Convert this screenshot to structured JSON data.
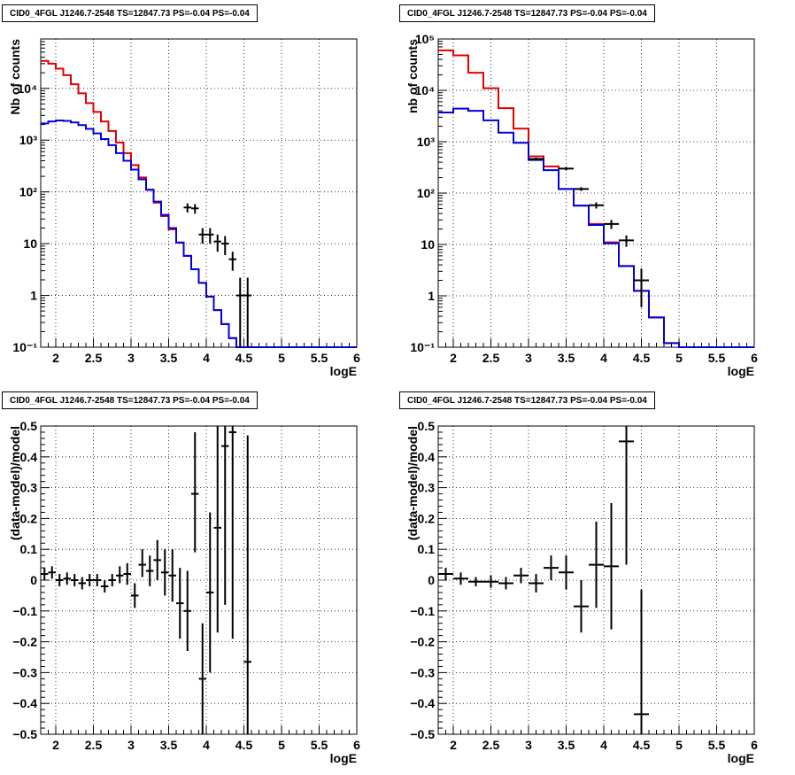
{
  "colors": {
    "data": "#000000",
    "model_red": "#e00000",
    "model_blue": "#0000dd",
    "grid": "#000000"
  },
  "chart_data": [
    {
      "type": "line",
      "title": "CID0_4FGL J1246.7-2548 TS=12847.73 PS=-0.04 PS=-0.04",
      "xlabel": "logE",
      "ylabel": "Nb of counts",
      "xlim": [
        1.8,
        6.0
      ],
      "ylim": [
        0.1,
        90000
      ],
      "ylog": true,
      "xticks": [
        "2",
        "2.5",
        "3",
        "3.5",
        "4",
        "4.5",
        "5",
        "5.5",
        "6"
      ],
      "yticks": [
        "10⁻¹",
        "1",
        "10",
        "10²",
        "10³",
        "10⁴"
      ],
      "grid": true,
      "series": [
        {
          "name": "",
          "style": "step-red",
          "edges": [
            1.8,
            1.9,
            2.0,
            2.1,
            2.2,
            2.3,
            2.4,
            2.5,
            2.6,
            2.7,
            2.8,
            2.9,
            3.0,
            3.1,
            3.2,
            3.3,
            3.4,
            3.5,
            3.6,
            3.7,
            3.8,
            3.9,
            4.0,
            4.1,
            4.2,
            4.3,
            4.4,
            4.5,
            4.6,
            4.7,
            4.8,
            4.9,
            5.0,
            6.0
          ],
          "values": [
            34000,
            30000,
            24000,
            18000,
            12000,
            8000,
            5200,
            3500,
            2300,
            1500,
            900,
            560,
            330,
            190,
            110,
            62,
            34,
            19,
            10.5,
            5.8,
            3.2,
            1.75,
            0.95,
            0.52,
            0.28,
            0.15,
            0.1,
            0.1,
            0.1,
            0.1,
            0.1,
            0.1,
            0.1
          ]
        },
        {
          "name": "",
          "style": "step-blue",
          "edges": [
            1.8,
            1.9,
            2.0,
            2.1,
            2.2,
            2.3,
            2.4,
            2.5,
            2.6,
            2.7,
            2.8,
            2.9,
            3.0,
            3.1,
            3.2,
            3.3,
            3.4,
            3.5,
            3.6,
            3.7,
            3.8,
            3.9,
            4.0,
            4.1,
            4.2,
            4.3,
            4.4,
            4.5,
            4.6,
            4.7,
            4.8,
            4.9,
            5.0,
            6.0
          ],
          "values": [
            2100,
            2300,
            2400,
            2350,
            2200,
            1950,
            1650,
            1350,
            1050,
            800,
            560,
            400,
            270,
            175,
            110,
            65,
            36,
            20,
            10.5,
            5.8,
            3.2,
            1.75,
            0.95,
            0.52,
            0.28,
            0.15,
            0.1,
            0.1,
            0.1,
            0.1,
            0.1,
            0.1,
            0.1
          ]
        },
        {
          "name": "",
          "style": "points",
          "points": [
            {
              "x": 3.75,
              "y": 50,
              "xerr": 0.05,
              "ylo": 40,
              "yhi": 60
            },
            {
              "x": 3.85,
              "y": 48,
              "xerr": 0.05,
              "ylo": 38,
              "yhi": 58
            },
            {
              "x": 3.95,
              "y": 15,
              "xerr": 0.05,
              "ylo": 10,
              "yhi": 20
            },
            {
              "x": 4.05,
              "y": 15,
              "xerr": 0.05,
              "ylo": 10,
              "yhi": 20
            },
            {
              "x": 4.15,
              "y": 11,
              "xerr": 0.05,
              "ylo": 7,
              "yhi": 15
            },
            {
              "x": 4.25,
              "y": 10,
              "xerr": 0.05,
              "ylo": 6,
              "yhi": 14
            },
            {
              "x": 4.35,
              "y": 5,
              "xerr": 0.05,
              "ylo": 3,
              "yhi": 7
            },
            {
              "x": 4.45,
              "y": 1,
              "xerr": 0.05,
              "ylo": 0.1,
              "yhi": 2.2
            },
            {
              "x": 4.55,
              "y": 1,
              "xerr": 0.05,
              "ylo": 0.1,
              "yhi": 2.2
            }
          ]
        }
      ]
    },
    {
      "type": "line",
      "title": "CID0_4FGL J1246.7-2548 TS=12847.73 PS=-0.04 PS=-0.04",
      "xlabel": "logE",
      "ylabel": "nb of counts",
      "xlim": [
        1.8,
        6.0
      ],
      "ylim": [
        0.1,
        100000
      ],
      "ylog": true,
      "xticks": [
        "2",
        "2.5",
        "3",
        "3.5",
        "4",
        "4.5",
        "5",
        "5.5",
        "6"
      ],
      "yticks": [
        "10⁻¹",
        "1",
        "10",
        "10²",
        "10³",
        "10⁴",
        "10⁵"
      ],
      "grid": true,
      "series": [
        {
          "name": "",
          "style": "step-red",
          "edges": [
            1.8,
            2.0,
            2.2,
            2.4,
            2.6,
            2.8,
            3.0,
            3.2,
            3.4,
            3.6,
            3.8,
            4.0,
            4.2,
            4.4,
            4.6,
            4.8,
            5.0,
            6.0
          ],
          "values": [
            60000,
            48000,
            22000,
            11000,
            4500,
            1800,
            520,
            330,
            120,
            57,
            25,
            11,
            3.8,
            1.25,
            0.38,
            0.12,
            0.1
          ]
        },
        {
          "name": "",
          "style": "step-blue",
          "edges": [
            1.8,
            2.0,
            2.2,
            2.4,
            2.6,
            2.8,
            3.0,
            3.2,
            3.4,
            3.6,
            3.8,
            4.0,
            4.2,
            4.4,
            4.6,
            4.8,
            5.0,
            6.0
          ],
          "values": [
            3700,
            4400,
            4000,
            2600,
            1500,
            950,
            440,
            280,
            120,
            57,
            24,
            10.5,
            3.8,
            1.25,
            0.38,
            0.12,
            0.1
          ]
        },
        {
          "name": "",
          "style": "points",
          "points": [
            {
              "x": 3.1,
              "y": 460,
              "xerr": 0.1,
              "ylo": 430,
              "yhi": 490
            },
            {
              "x": 3.5,
              "y": 300,
              "xerr": 0.1,
              "ylo": 280,
              "yhi": 320
            },
            {
              "x": 3.7,
              "y": 120,
              "xerr": 0.1,
              "ylo": 110,
              "yhi": 130
            },
            {
              "x": 3.9,
              "y": 58,
              "xerr": 0.1,
              "ylo": 50,
              "yhi": 66
            },
            {
              "x": 4.1,
              "y": 25,
              "xerr": 0.1,
              "ylo": 20,
              "yhi": 30
            },
            {
              "x": 4.3,
              "y": 12,
              "xerr": 0.1,
              "ylo": 9,
              "yhi": 15
            },
            {
              "x": 4.5,
              "y": 2,
              "xerr": 0.1,
              "ylo": 0.6,
              "yhi": 3.4
            }
          ]
        }
      ]
    },
    {
      "type": "scatter",
      "title": "CID0_4FGL J1246.7-2548 TS=12847.73 PS=-0.04 PS=-0.04",
      "xlabel": "logE",
      "ylabel": "(data-model)/model",
      "xlim": [
        1.8,
        6.0
      ],
      "ylim": [
        -0.5,
        0.5
      ],
      "ylog": false,
      "xticks": [
        "2",
        "2.5",
        "3",
        "3.5",
        "4",
        "4.5",
        "5",
        "5.5",
        "6"
      ],
      "yticks": [
        "−0.5",
        "−0.4",
        "−0.3",
        "−0.2",
        "−0.1",
        "0",
        "0.1",
        "0.2",
        "0.3",
        "0.4",
        "0.5"
      ],
      "grid": true,
      "series": [
        {
          "name": "",
          "style": "points",
          "points": [
            {
              "x": 1.85,
              "y": 0.02,
              "xerr": 0.05,
              "ylo": 0.0,
              "yhi": 0.04
            },
            {
              "x": 1.95,
              "y": 0.025,
              "xerr": 0.05,
              "ylo": 0.005,
              "yhi": 0.045
            },
            {
              "x": 2.05,
              "y": 0.0,
              "xerr": 0.05,
              "ylo": -0.02,
              "yhi": 0.02
            },
            {
              "x": 2.15,
              "y": 0.005,
              "xerr": 0.05,
              "ylo": -0.015,
              "yhi": 0.025
            },
            {
              "x": 2.25,
              "y": 0.0,
              "xerr": 0.05,
              "ylo": -0.02,
              "yhi": 0.02
            },
            {
              "x": 2.35,
              "y": -0.01,
              "xerr": 0.05,
              "ylo": -0.03,
              "yhi": 0.01
            },
            {
              "x": 2.45,
              "y": 0.0,
              "xerr": 0.05,
              "ylo": -0.02,
              "yhi": 0.02
            },
            {
              "x": 2.55,
              "y": 0.0,
              "xerr": 0.05,
              "ylo": -0.02,
              "yhi": 0.02
            },
            {
              "x": 2.65,
              "y": -0.02,
              "xerr": 0.05,
              "ylo": -0.04,
              "yhi": 0.0
            },
            {
              "x": 2.75,
              "y": 0.0,
              "xerr": 0.05,
              "ylo": -0.02,
              "yhi": 0.02
            },
            {
              "x": 2.85,
              "y": 0.015,
              "xerr": 0.05,
              "ylo": -0.01,
              "yhi": 0.045
            },
            {
              "x": 2.95,
              "y": 0.02,
              "xerr": 0.05,
              "ylo": -0.015,
              "yhi": 0.055
            },
            {
              "x": 3.05,
              "y": -0.05,
              "xerr": 0.05,
              "ylo": -0.09,
              "yhi": -0.01
            },
            {
              "x": 3.15,
              "y": 0.05,
              "xerr": 0.05,
              "ylo": 0.01,
              "yhi": 0.1
            },
            {
              "x": 3.25,
              "y": 0.03,
              "xerr": 0.05,
              "ylo": -0.02,
              "yhi": 0.08
            },
            {
              "x": 3.35,
              "y": 0.065,
              "xerr": 0.05,
              "ylo": 0.0,
              "yhi": 0.13
            },
            {
              "x": 3.45,
              "y": 0.025,
              "xerr": 0.05,
              "ylo": -0.05,
              "yhi": 0.1
            },
            {
              "x": 3.55,
              "y": 0.015,
              "xerr": 0.05,
              "ylo": -0.07,
              "yhi": 0.1
            },
            {
              "x": 3.65,
              "y": -0.075,
              "xerr": 0.05,
              "ylo": -0.19,
              "yhi": 0.04
            },
            {
              "x": 3.75,
              "y": -0.1,
              "xerr": 0.05,
              "ylo": -0.23,
              "yhi": 0.03
            },
            {
              "x": 3.85,
              "y": 0.28,
              "xerr": 0.05,
              "ylo": 0.09,
              "yhi": 0.48
            },
            {
              "x": 3.95,
              "y": -0.32,
              "xerr": 0.05,
              "ylo": -0.5,
              "yhi": -0.14
            },
            {
              "x": 4.05,
              "y": -0.04,
              "xerr": 0.05,
              "ylo": -0.3,
              "yhi": 0.22
            },
            {
              "x": 4.15,
              "y": 0.17,
              "xerr": 0.05,
              "ylo": -0.17,
              "yhi": 0.5
            },
            {
              "x": 4.25,
              "y": 0.435,
              "xerr": 0.05,
              "ylo": -0.08,
              "yhi": 0.5
            },
            {
              "x": 4.35,
              "y": 0.48,
              "xerr": 0.05,
              "ylo": -0.19,
              "yhi": 0.5
            },
            {
              "x": 4.55,
              "y": -0.265,
              "xerr": 0.05,
              "ylo": -0.5,
              "yhi": 0.47
            }
          ]
        }
      ]
    },
    {
      "type": "scatter",
      "title": "CID0_4FGL J1246.7-2548 TS=12847.73 PS=-0.04 PS=-0.04",
      "xlabel": "logE",
      "ylabel": "(data-model)/model",
      "xlim": [
        1.8,
        6.0
      ],
      "ylim": [
        -0.5,
        0.5
      ],
      "ylog": false,
      "xticks": [
        "2",
        "2.5",
        "3",
        "3.5",
        "4",
        "4.5",
        "5",
        "5.5",
        "6"
      ],
      "yticks": [
        "−0.5",
        "−0.4",
        "−0.3",
        "−0.2",
        "−0.1",
        "0",
        "0.1",
        "0.2",
        "0.3",
        "0.4",
        "0.5"
      ],
      "grid": true,
      "series": [
        {
          "name": "",
          "style": "points",
          "points": [
            {
              "x": 1.9,
              "y": 0.02,
              "xerr": 0.1,
              "ylo": 0.0,
              "yhi": 0.04
            },
            {
              "x": 2.1,
              "y": 0.005,
              "xerr": 0.1,
              "ylo": -0.015,
              "yhi": 0.025
            },
            {
              "x": 2.3,
              "y": -0.005,
              "xerr": 0.1,
              "ylo": -0.02,
              "yhi": 0.01
            },
            {
              "x": 2.5,
              "y": -0.005,
              "xerr": 0.1,
              "ylo": -0.025,
              "yhi": 0.015
            },
            {
              "x": 2.7,
              "y": -0.01,
              "xerr": 0.1,
              "ylo": -0.03,
              "yhi": 0.01
            },
            {
              "x": 2.9,
              "y": 0.015,
              "xerr": 0.1,
              "ylo": -0.01,
              "yhi": 0.04
            },
            {
              "x": 3.1,
              "y": -0.01,
              "xerr": 0.1,
              "ylo": -0.04,
              "yhi": 0.02
            },
            {
              "x": 3.3,
              "y": 0.04,
              "xerr": 0.1,
              "ylo": 0.0,
              "yhi": 0.08
            },
            {
              "x": 3.5,
              "y": 0.025,
              "xerr": 0.1,
              "ylo": -0.03,
              "yhi": 0.08
            },
            {
              "x": 3.7,
              "y": -0.085,
              "xerr": 0.1,
              "ylo": -0.17,
              "yhi": 0.0
            },
            {
              "x": 3.9,
              "y": 0.05,
              "xerr": 0.1,
              "ylo": -0.09,
              "yhi": 0.19
            },
            {
              "x": 4.1,
              "y": 0.045,
              "xerr": 0.1,
              "ylo": -0.16,
              "yhi": 0.25
            },
            {
              "x": 4.3,
              "y": 0.45,
              "xerr": 0.1,
              "ylo": 0.05,
              "yhi": 0.5
            },
            {
              "x": 4.5,
              "y": -0.435,
              "xerr": 0.1,
              "ylo": -0.5,
              "yhi": -0.03
            }
          ]
        }
      ]
    }
  ]
}
